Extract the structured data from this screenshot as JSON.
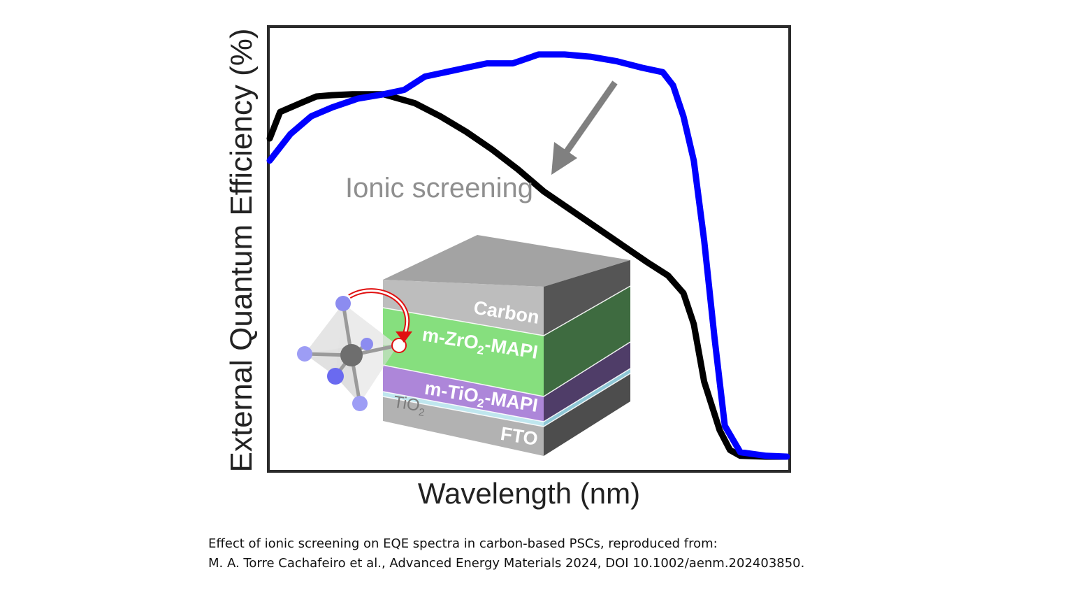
{
  "chart_data": {
    "type": "line",
    "xlabel": "Wavelength (nm)",
    "ylabel": "External Quantum Efficiency (%)",
    "x_ticks_shown": false,
    "y_ticks_shown": false,
    "grid": false,
    "xlim": [
      0,
      1
    ],
    "ylim": [
      0,
      1
    ],
    "series": [
      {
        "color": "#000000",
        "x": [
          0.0,
          0.02,
          0.06,
          0.09,
          0.12,
          0.16,
          0.22,
          0.28,
          0.33,
          0.38,
          0.43,
          0.48,
          0.53,
          0.58,
          0.63,
          0.68,
          0.73,
          0.77,
          0.8,
          0.82,
          0.84,
          0.87,
          0.89,
          0.91,
          0.96,
          1.0
        ],
        "y": [
          0.75,
          0.81,
          0.83,
          0.845,
          0.848,
          0.85,
          0.85,
          0.83,
          0.8,
          0.765,
          0.725,
          0.68,
          0.63,
          0.59,
          0.55,
          0.51,
          0.47,
          0.44,
          0.4,
          0.33,
          0.2,
          0.09,
          0.045,
          0.032,
          0.03,
          0.03
        ]
      },
      {
        "color": "#0000ff",
        "x": [
          0.0,
          0.04,
          0.08,
          0.12,
          0.17,
          0.22,
          0.26,
          0.3,
          0.34,
          0.38,
          0.42,
          0.47,
          0.52,
          0.57,
          0.62,
          0.67,
          0.72,
          0.76,
          0.78,
          0.8,
          0.82,
          0.84,
          0.86,
          0.88,
          0.91,
          0.96,
          1.0
        ],
        "y": [
          0.7,
          0.76,
          0.8,
          0.82,
          0.84,
          0.85,
          0.86,
          0.89,
          0.9,
          0.91,
          0.92,
          0.92,
          0.94,
          0.94,
          0.935,
          0.925,
          0.91,
          0.9,
          0.87,
          0.8,
          0.7,
          0.52,
          0.3,
          0.1,
          0.04,
          0.032,
          0.03
        ]
      }
    ],
    "annotations": [
      {
        "text": "Ionic screening",
        "color": "#8f8f8f",
        "arrow": "gray arrow pointing down-left to the curves"
      }
    ],
    "inset": {
      "description_layers_top_to_bottom": [
        "Carbon",
        "m-ZrO2-MAPI",
        "m-TiO2-MAPI",
        "TiO2",
        "FTO"
      ],
      "layer_colors": {
        "Carbon": "#bdbdbd",
        "m-ZrO2-MAPI": "#86df7e",
        "m-TiO2-MAPI": "#ad86d9",
        "TiO2": "#a8a8a8",
        "FTO": "#b2b2b2"
      }
    }
  },
  "stack_labels": {
    "carbon": "Carbon",
    "zro2_prefix": "m-ZrO",
    "zro2_sub": "2",
    "zro2_suffix": "-MAPI",
    "tio2_prefix": "m-TiO",
    "tio2_sub": "2",
    "tio2_suffix": "-MAPI",
    "tio2_layer": "TiO",
    "tio2_layer_sub": "2",
    "fto": "FTO"
  },
  "caption": {
    "line1": "Effect of ionic screening on EQE spectra in carbon-based PSCs, reproduced from:",
    "line2": "M. A. Torre Cachafeiro et al., Advanced Energy Materials 2024, DOI 10.1002/aenm.202403850."
  }
}
